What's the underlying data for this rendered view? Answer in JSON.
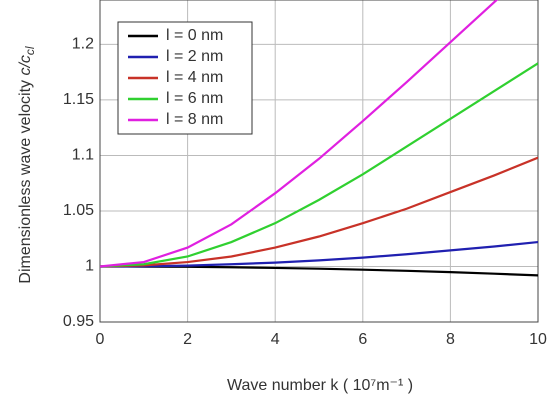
{
  "chart_data": {
    "type": "line",
    "x_label": "Wave number k ( 10⁷m⁻¹ )",
    "y_label": {
      "text": "Dimensionless wave velocity ",
      "var": "c/c",
      "sub": "cl"
    },
    "x": [
      0,
      1,
      2,
      3,
      4,
      5,
      6,
      7,
      8,
      9,
      10
    ],
    "series": [
      {
        "name": "l = 0 nm",
        "color": "#000000",
        "values": [
          1,
          0.9999,
          0.9997,
          0.9993,
          0.9987,
          0.998,
          0.9971,
          0.9961,
          0.9949,
          0.9935,
          0.992
        ]
      },
      {
        "name": "l = 2 nm",
        "color": "#2020b0",
        "values": [
          1,
          1.0002,
          1.0008,
          1.002,
          1.0035,
          1.0055,
          1.008,
          1.011,
          1.0145,
          1.018,
          1.022
        ]
      },
      {
        "name": "l = 4 nm",
        "color": "#c83228",
        "values": [
          1,
          1.001,
          1.004,
          1.009,
          1.017,
          1.027,
          1.039,
          1.052,
          1.067,
          1.082,
          1.098
        ]
      },
      {
        "name": "l = 6 nm",
        "color": "#30d030",
        "values": [
          1,
          1.002,
          1.009,
          1.022,
          1.039,
          1.06,
          1.083,
          1.108,
          1.133,
          1.158,
          1.183
        ]
      },
      {
        "name": "l = 8 nm",
        "color": "#e020e0",
        "values": [
          1,
          1.004,
          1.017,
          1.038,
          1.066,
          1.097,
          1.131,
          1.166,
          1.202,
          1.238,
          1.274
        ]
      }
    ],
    "xlim": [
      0,
      10
    ],
    "ylim": [
      0.95,
      1.24
    ],
    "xticks": [
      0,
      2,
      4,
      6,
      8,
      10
    ],
    "yticks": [
      0.95,
      1,
      1.05,
      1.1,
      1.15,
      1.2
    ],
    "grid": true,
    "legend": "upper left"
  }
}
